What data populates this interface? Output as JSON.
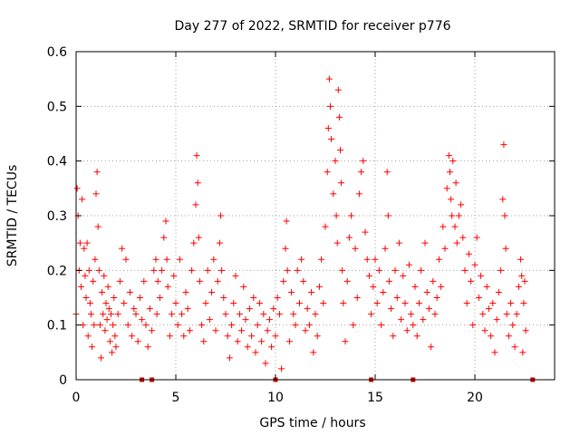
{
  "chart_data": {
    "type": "scatter",
    "title": "Day 277 of 2022, SRMTID for receiver p776",
    "xlabel": "GPS time / hours",
    "ylabel": "SRMTID / TECUs",
    "xlim": [
      0,
      24
    ],
    "ylim": [
      0,
      0.6
    ],
    "xticks": [
      0,
      5,
      10,
      15,
      20
    ],
    "xtick_labels": [
      "0",
      "5",
      "10",
      "15",
      "20"
    ],
    "yticks": [
      0,
      0.1,
      0.2,
      0.3,
      0.4,
      0.5,
      0.6
    ],
    "ytick_labels": [
      "0",
      "0.1",
      "0.2",
      "0.3",
      "0.4",
      "0.5",
      "0.6"
    ],
    "grid": true,
    "marker": "+",
    "color": "#ff0000",
    "zero_markers_x": [
      3.3,
      3.8,
      10.0,
      14.8,
      16.9,
      22.9
    ],
    "series": [
      {
        "name": "SRMTID",
        "points": [
          [
            0.0,
            0.12
          ],
          [
            0.05,
            0.35
          ],
          [
            0.1,
            0.3
          ],
          [
            0.15,
            0.2
          ],
          [
            0.2,
            0.25
          ],
          [
            0.25,
            0.17
          ],
          [
            0.3,
            0.33
          ],
          [
            0.35,
            0.1
          ],
          [
            0.4,
            0.24
          ],
          [
            0.45,
            0.19
          ],
          [
            0.5,
            0.15
          ],
          [
            0.55,
            0.25
          ],
          [
            0.6,
            0.08
          ],
          [
            0.65,
            0.2
          ],
          [
            0.7,
            0.14
          ],
          [
            0.75,
            0.12
          ],
          [
            0.8,
            0.06
          ],
          [
            0.85,
            0.18
          ],
          [
            0.9,
            0.1
          ],
          [
            0.95,
            0.22
          ],
          [
            1.0,
            0.34
          ],
          [
            1.05,
            0.38
          ],
          [
            1.1,
            0.28
          ],
          [
            1.15,
            0.2
          ],
          [
            1.2,
            0.1
          ],
          [
            1.25,
            0.04
          ],
          [
            1.3,
            0.16
          ],
          [
            1.35,
            0.12
          ],
          [
            1.4,
            0.19
          ],
          [
            1.45,
            0.09
          ],
          [
            1.5,
            0.14
          ],
          [
            1.55,
            0.11
          ],
          [
            1.6,
            0.17
          ],
          [
            1.65,
            0.13
          ],
          [
            1.7,
            0.07
          ],
          [
            1.75,
            0.12
          ],
          [
            1.8,
            0.05
          ],
          [
            1.85,
            0.1
          ],
          [
            1.9,
            0.15
          ],
          [
            1.95,
            0.08
          ],
          [
            2.0,
            0.06
          ],
          [
            2.1,
            0.12
          ],
          [
            2.2,
            0.18
          ],
          [
            2.3,
            0.24
          ],
          [
            2.4,
            0.14
          ],
          [
            2.5,
            0.22
          ],
          [
            2.6,
            0.1
          ],
          [
            2.7,
            0.16
          ],
          [
            2.8,
            0.08
          ],
          [
            2.9,
            0.13
          ],
          [
            3.0,
            0.12
          ],
          [
            3.1,
            0.07
          ],
          [
            3.2,
            0.15
          ],
          [
            3.3,
            0.11
          ],
          [
            3.4,
            0.18
          ],
          [
            3.5,
            0.1
          ],
          [
            3.6,
            0.06
          ],
          [
            3.7,
            0.13
          ],
          [
            3.8,
            0.09
          ],
          [
            3.9,
            0.2
          ],
          [
            4.0,
            0.22
          ],
          [
            4.05,
            0.12
          ],
          [
            4.1,
            0.18
          ],
          [
            4.2,
            0.15
          ],
          [
            4.3,
            0.2
          ],
          [
            4.4,
            0.26
          ],
          [
            4.5,
            0.29
          ],
          [
            4.55,
            0.22
          ],
          [
            4.6,
            0.17
          ],
          [
            4.7,
            0.08
          ],
          [
            4.8,
            0.12
          ],
          [
            4.9,
            0.19
          ],
          [
            5.0,
            0.14
          ],
          [
            5.1,
            0.1
          ],
          [
            5.2,
            0.22
          ],
          [
            5.3,
            0.12
          ],
          [
            5.4,
            0.08
          ],
          [
            5.5,
            0.16
          ],
          [
            5.6,
            0.13
          ],
          [
            5.7,
            0.09
          ],
          [
            5.8,
            0.2
          ],
          [
            5.9,
            0.25
          ],
          [
            6.0,
            0.32
          ],
          [
            6.05,
            0.41
          ],
          [
            6.1,
            0.36
          ],
          [
            6.15,
            0.26
          ],
          [
            6.2,
            0.18
          ],
          [
            6.3,
            0.1
          ],
          [
            6.4,
            0.07
          ],
          [
            6.5,
            0.14
          ],
          [
            6.6,
            0.2
          ],
          [
            6.7,
            0.11
          ],
          [
            6.8,
            0.16
          ],
          [
            6.9,
            0.22
          ],
          [
            7.0,
            0.09
          ],
          [
            7.1,
            0.18
          ],
          [
            7.2,
            0.25
          ],
          [
            7.25,
            0.3
          ],
          [
            7.3,
            0.2
          ],
          [
            7.4,
            0.15
          ],
          [
            7.5,
            0.12
          ],
          [
            7.6,
            0.08
          ],
          [
            7.7,
            0.04
          ],
          [
            7.8,
            0.1
          ],
          [
            7.9,
            0.14
          ],
          [
            8.0,
            0.19
          ],
          [
            8.1,
            0.07
          ],
          [
            8.2,
            0.12
          ],
          [
            8.3,
            0.09
          ],
          [
            8.4,
            0.17
          ],
          [
            8.5,
            0.11
          ],
          [
            8.6,
            0.06
          ],
          [
            8.7,
            0.13
          ],
          [
            8.8,
            0.08
          ],
          [
            8.9,
            0.15
          ],
          [
            9.0,
            0.05
          ],
          [
            9.1,
            0.1
          ],
          [
            9.2,
            0.14
          ],
          [
            9.3,
            0.07
          ],
          [
            9.4,
            0.12
          ],
          [
            9.5,
            0.03
          ],
          [
            9.6,
            0.09
          ],
          [
            9.7,
            0.11
          ],
          [
            9.8,
            0.06
          ],
          [
            9.9,
            0.13
          ],
          [
            10.0,
            0.08
          ],
          [
            10.1,
            0.15
          ],
          [
            10.2,
            0.12
          ],
          [
            10.3,
            0.02
          ],
          [
            10.4,
            0.18
          ],
          [
            10.5,
            0.24
          ],
          [
            10.55,
            0.29
          ],
          [
            10.6,
            0.2
          ],
          [
            10.7,
            0.07
          ],
          [
            10.8,
            0.16
          ],
          [
            10.9,
            0.12
          ],
          [
            11.0,
            0.1
          ],
          [
            11.1,
            0.2
          ],
          [
            11.2,
            0.14
          ],
          [
            11.3,
            0.22
          ],
          [
            11.4,
            0.18
          ],
          [
            11.5,
            0.09
          ],
          [
            11.6,
            0.13
          ],
          [
            11.7,
            0.1
          ],
          [
            11.8,
            0.16
          ],
          [
            11.9,
            0.05
          ],
          [
            12.0,
            0.12
          ],
          [
            12.1,
            0.08
          ],
          [
            12.2,
            0.17
          ],
          [
            12.3,
            0.22
          ],
          [
            12.4,
            0.14
          ],
          [
            12.5,
            0.28
          ],
          [
            12.6,
            0.38
          ],
          [
            12.65,
            0.46
          ],
          [
            12.7,
            0.55
          ],
          [
            12.75,
            0.5
          ],
          [
            12.8,
            0.44
          ],
          [
            12.9,
            0.34
          ],
          [
            13.0,
            0.4
          ],
          [
            13.05,
            0.3
          ],
          [
            13.1,
            0.25
          ],
          [
            13.15,
            0.53
          ],
          [
            13.2,
            0.48
          ],
          [
            13.25,
            0.42
          ],
          [
            13.3,
            0.36
          ],
          [
            13.35,
            0.2
          ],
          [
            13.4,
            0.14
          ],
          [
            13.5,
            0.07
          ],
          [
            13.6,
            0.18
          ],
          [
            13.7,
            0.26
          ],
          [
            13.8,
            0.3
          ],
          [
            13.9,
            0.1
          ],
          [
            14.0,
            0.24
          ],
          [
            14.1,
            0.15
          ],
          [
            14.2,
            0.34
          ],
          [
            14.3,
            0.38
          ],
          [
            14.4,
            0.4
          ],
          [
            14.5,
            0.27
          ],
          [
            14.6,
            0.22
          ],
          [
            14.7,
            0.19
          ],
          [
            14.8,
            0.12
          ],
          [
            14.9,
            0.17
          ],
          [
            15.0,
            0.22
          ],
          [
            15.1,
            0.14
          ],
          [
            15.2,
            0.2
          ],
          [
            15.3,
            0.1
          ],
          [
            15.4,
            0.16
          ],
          [
            15.5,
            0.24
          ],
          [
            15.6,
            0.38
          ],
          [
            15.65,
            0.3
          ],
          [
            15.7,
            0.18
          ],
          [
            15.8,
            0.13
          ],
          [
            15.9,
            0.08
          ],
          [
            16.0,
            0.2
          ],
          [
            16.1,
            0.15
          ],
          [
            16.2,
            0.25
          ],
          [
            16.3,
            0.11
          ],
          [
            16.4,
            0.19
          ],
          [
            16.5,
            0.14
          ],
          [
            16.6,
            0.09
          ],
          [
            16.7,
            0.21
          ],
          [
            16.8,
            0.12
          ],
          [
            16.9,
            0.1
          ],
          [
            17.0,
            0.17
          ],
          [
            17.1,
            0.08
          ],
          [
            17.2,
            0.14
          ],
          [
            17.3,
            0.2
          ],
          [
            17.4,
            0.11
          ],
          [
            17.5,
            0.25
          ],
          [
            17.6,
            0.16
          ],
          [
            17.7,
            0.13
          ],
          [
            17.8,
            0.06
          ],
          [
            17.9,
            0.18
          ],
          [
            18.0,
            0.12
          ],
          [
            18.1,
            0.15
          ],
          [
            18.2,
            0.22
          ],
          [
            18.3,
            0.17
          ],
          [
            18.4,
            0.28
          ],
          [
            18.5,
            0.24
          ],
          [
            18.6,
            0.35
          ],
          [
            18.7,
            0.41
          ],
          [
            18.75,
            0.38
          ],
          [
            18.8,
            0.33
          ],
          [
            18.85,
            0.3
          ],
          [
            18.9,
            0.4
          ],
          [
            19.0,
            0.28
          ],
          [
            19.05,
            0.36
          ],
          [
            19.1,
            0.25
          ],
          [
            19.2,
            0.3
          ],
          [
            19.3,
            0.32
          ],
          [
            19.4,
            0.26
          ],
          [
            19.5,
            0.2
          ],
          [
            19.6,
            0.14
          ],
          [
            19.7,
            0.23
          ],
          [
            19.8,
            0.18
          ],
          [
            19.9,
            0.1
          ],
          [
            20.0,
            0.21
          ],
          [
            20.1,
            0.26
          ],
          [
            20.2,
            0.15
          ],
          [
            20.3,
            0.19
          ],
          [
            20.4,
            0.12
          ],
          [
            20.5,
            0.09
          ],
          [
            20.6,
            0.17
          ],
          [
            20.7,
            0.13
          ],
          [
            20.8,
            0.08
          ],
          [
            20.9,
            0.14
          ],
          [
            21.0,
            0.05
          ],
          [
            21.1,
            0.11
          ],
          [
            21.2,
            0.16
          ],
          [
            21.3,
            0.2
          ],
          [
            21.4,
            0.33
          ],
          [
            21.45,
            0.43
          ],
          [
            21.5,
            0.3
          ],
          [
            21.55,
            0.24
          ],
          [
            21.6,
            0.12
          ],
          [
            21.7,
            0.08
          ],
          [
            21.8,
            0.14
          ],
          [
            21.9,
            0.1
          ],
          [
            22.0,
            0.06
          ],
          [
            22.1,
            0.12
          ],
          [
            22.2,
            0.17
          ],
          [
            22.3,
            0.22
          ],
          [
            22.35,
            0.19
          ],
          [
            22.4,
            0.05
          ],
          [
            22.45,
            0.14
          ],
          [
            22.5,
            0.18
          ],
          [
            22.55,
            0.09
          ]
        ]
      }
    ]
  }
}
